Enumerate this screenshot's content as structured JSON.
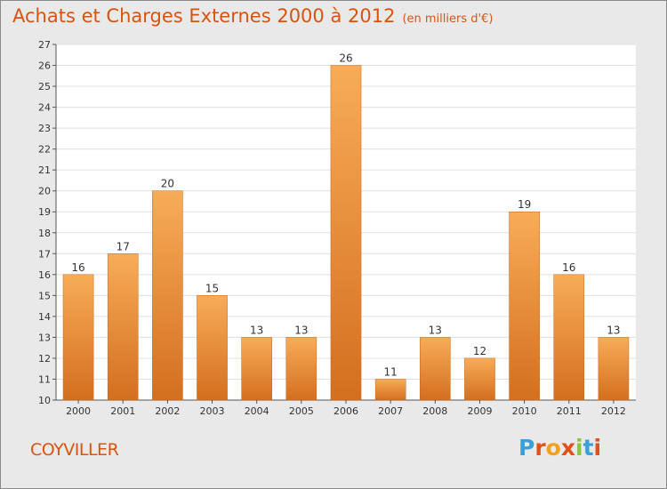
{
  "header": {
    "title": "Achats et Charges Externes 2000 à 2012",
    "unit": "(en milliers d'€)"
  },
  "footer": {
    "commune": "COYVILLER",
    "brand_letters": [
      "P",
      "r",
      "o",
      "x",
      "i",
      "t",
      "i"
    ],
    "brand_colors": [
      "#3aa0d8",
      "#e2501a",
      "#f4a01c",
      "#e2501a",
      "#8cc43f",
      "#3aa0d8",
      "#e2501a"
    ]
  },
  "colors": {
    "bar_light": "#f8ac58",
    "bar_dark": "#d36f1f",
    "plot_bg": "#ffffff",
    "frame_bg": "#e9e9e9",
    "grid": "#e0e0e0",
    "accent": "#d8540e"
  },
  "chart_data": {
    "type": "bar",
    "title": "Achats et Charges Externes 2000 à 2012",
    "subtitle": "(en milliers d'€)",
    "categories": [
      "2000",
      "2001",
      "2002",
      "2003",
      "2004",
      "2005",
      "2006",
      "2007",
      "2008",
      "2009",
      "2010",
      "2011",
      "2012"
    ],
    "values": [
      16,
      17,
      20,
      15,
      13,
      13,
      26,
      11,
      13,
      12,
      19,
      16,
      13
    ],
    "ylim": [
      10,
      27
    ],
    "yticks": [
      10,
      11,
      12,
      13,
      14,
      15,
      16,
      17,
      18,
      19,
      20,
      21,
      22,
      23,
      24,
      25,
      26,
      27
    ],
    "grid": true,
    "data_labels": true
  }
}
